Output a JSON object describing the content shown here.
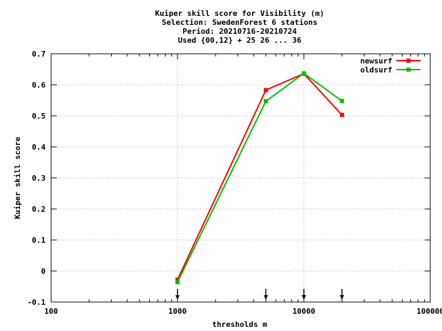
{
  "chart_data": {
    "type": "line",
    "title_lines": [
      "Kuiper skill score  for Visibility (m)",
      "Selection: SwedenForest      6 stations",
      "Period: 20210716-20210724",
      "Used {00,12} + 25 26 ... 36"
    ],
    "xlabel": "thresholds m",
    "ylabel": "Kuiper skill score",
    "x_scale": "log",
    "xlim": [
      100,
      100000
    ],
    "ylim": [
      -0.1,
      0.7
    ],
    "x_ticks": [
      100,
      1000,
      10000,
      100000
    ],
    "x_tick_labels": [
      "100",
      "1000",
      "10000",
      "100000"
    ],
    "y_ticks": [
      -0.1,
      0,
      0.1,
      0.2,
      0.3,
      0.4,
      0.5,
      0.6,
      0.7
    ],
    "y_tick_labels": [
      "-0.1",
      "0",
      "0.1",
      "0.2",
      "0.3",
      "0.4",
      "0.5",
      "0.6",
      "0.7"
    ],
    "grid": true,
    "legend_position": "top-right",
    "x": [
      1000,
      5000,
      10000,
      20000
    ],
    "series": [
      {
        "name": "newsurf",
        "color": "#ff0000",
        "values": [
          -0.028,
          0.583,
          0.636,
          0.503
        ]
      },
      {
        "name": "oldsurf",
        "color": "#00c000",
        "values": [
          -0.036,
          0.547,
          0.637,
          0.548
        ]
      }
    ],
    "arrow_markers_x": [
      1000,
      5000,
      10000,
      20000
    ]
  }
}
